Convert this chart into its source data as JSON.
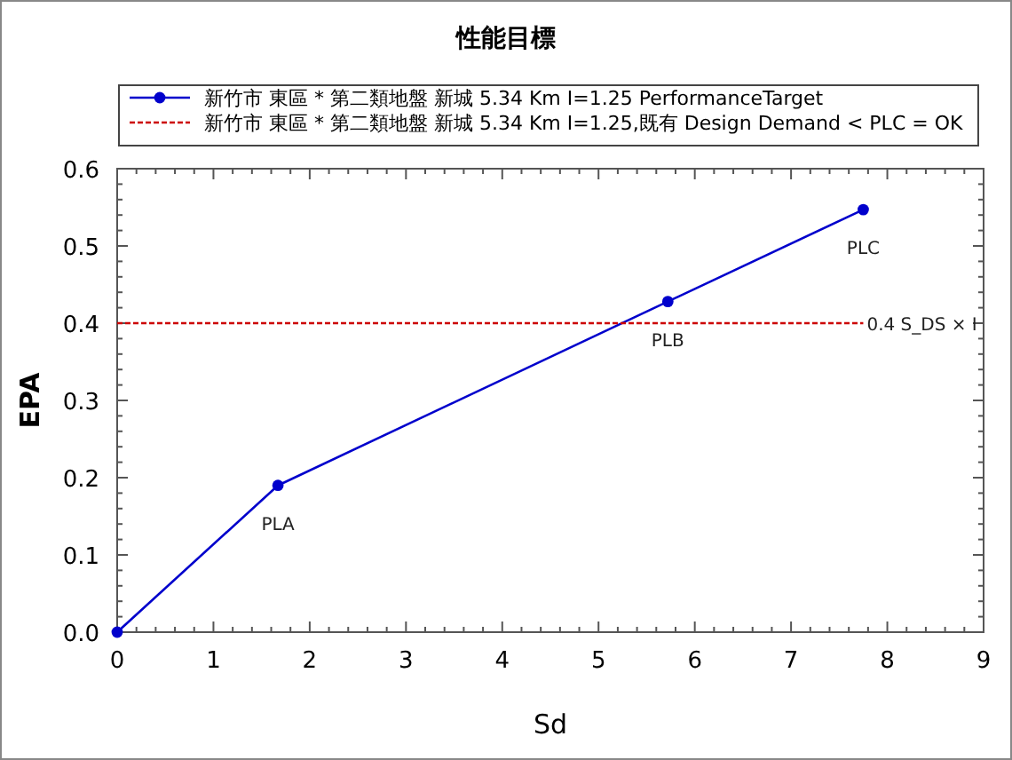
{
  "chart_data": {
    "type": "line",
    "title": "性能目標",
    "xlabel": "Sd",
    "ylabel": "EPA",
    "series": [
      {
        "name": "新竹市 東區 * 第二類地盤 新城 5.34 Km I=1.25 PerformanceTarget",
        "color": "#0000cc",
        "x": [
          0,
          1.67,
          5.72,
          7.75
        ],
        "values": [
          0,
          0.19,
          0.428,
          0.547
        ],
        "marker": "circle",
        "line_style": "solid"
      },
      {
        "name": "新竹市 東區 * 第二類地盤 新城 5.34 Km I=1.25,既有 Design Demand < PLC = OK",
        "color": "#cc0000",
        "x": [
          0,
          7.75
        ],
        "values": [
          0.4,
          0.4
        ],
        "marker": "none",
        "line_style": "dashed"
      }
    ],
    "annotations": [
      {
        "text": "PLA",
        "x": 1.67,
        "y": 0.19
      },
      {
        "text": "PLB",
        "x": 5.72,
        "y": 0.428
      },
      {
        "text": "PLC",
        "x": 7.75,
        "y": 0.547
      },
      {
        "text": "0.4 S_DS × I",
        "x": 7.75,
        "y": 0.4
      }
    ],
    "xlim": [
      0,
      9
    ],
    "xticks": [
      0,
      1,
      2,
      3,
      4,
      5,
      6,
      7,
      8,
      9
    ],
    "ylim": [
      0,
      0.6
    ],
    "yticks": [
      {
        "value": 0,
        "label": "0.0"
      },
      0.1,
      0.2,
      0.3,
      0.4,
      0.5,
      0.6
    ],
    "grid": false,
    "legend": "top"
  }
}
